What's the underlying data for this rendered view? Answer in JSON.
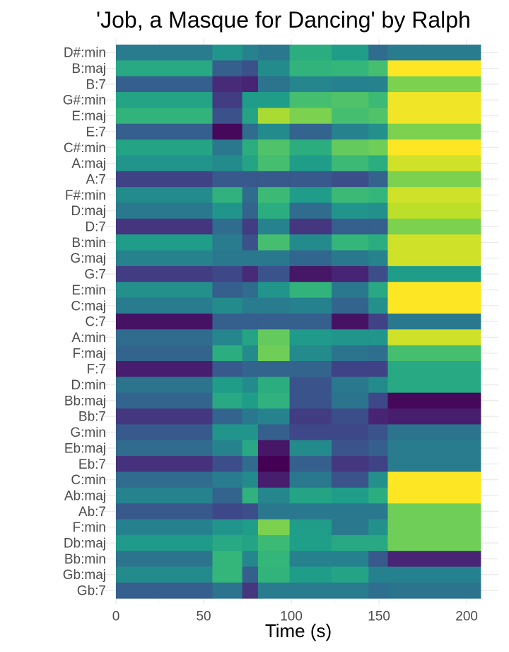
{
  "chart_data": {
    "type": "heatmap",
    "title": "'Job, a Masque for Dancing' by Ralph",
    "xlabel": "Time (s)",
    "ylabel": "",
    "xlim": [
      0,
      208
    ],
    "x_ticks": [
      0,
      50,
      100,
      150,
      200
    ],
    "colormap": "viridis",
    "value_range": [
      0,
      1
    ],
    "grid": true,
    "legend": "none",
    "time_bins": [
      0,
      55,
      72,
      81,
      99,
      123,
      144,
      155,
      208
    ],
    "chords": [
      "D#:min",
      "B:maj",
      "B:7",
      "G#:min",
      "E:maj",
      "E:7",
      "C#:min",
      "A:maj",
      "A:7",
      "F#:min",
      "D:maj",
      "D:7",
      "B:min",
      "G:maj",
      "G:7",
      "E:min",
      "C:maj",
      "C:7",
      "A:min",
      "F:maj",
      "F:7",
      "D:min",
      "Bb:maj",
      "Bb:7",
      "G:min",
      "Eb:maj",
      "Eb:7",
      "C:min",
      "Ab:maj",
      "Ab:7",
      "F:min",
      "Db:maj",
      "Bb:min",
      "Gb:maj",
      "Gb:7"
    ],
    "values": [
      [
        0.42,
        0.52,
        0.45,
        0.4,
        0.62,
        0.55,
        0.35,
        0.42
      ],
      [
        0.6,
        0.3,
        0.25,
        0.48,
        0.65,
        0.66,
        0.7,
        1.0
      ],
      [
        0.3,
        0.12,
        0.1,
        0.38,
        0.46,
        0.44,
        0.45,
        0.8
      ],
      [
        0.58,
        0.18,
        0.55,
        0.55,
        0.7,
        0.72,
        0.68,
        0.98
      ],
      [
        0.65,
        0.25,
        0.58,
        0.87,
        0.8,
        0.7,
        0.72,
        0.98
      ],
      [
        0.3,
        0.02,
        0.35,
        0.48,
        0.32,
        0.45,
        0.5,
        0.8
      ],
      [
        0.58,
        0.4,
        0.62,
        0.72,
        0.62,
        0.76,
        0.78,
        1.0
      ],
      [
        0.52,
        0.48,
        0.58,
        0.7,
        0.55,
        0.68,
        0.62,
        0.93
      ],
      [
        0.2,
        0.28,
        0.28,
        0.28,
        0.28,
        0.24,
        0.32,
        0.8
      ],
      [
        0.48,
        0.64,
        0.35,
        0.68,
        0.55,
        0.68,
        0.66,
        0.93
      ],
      [
        0.4,
        0.52,
        0.32,
        0.62,
        0.35,
        0.52,
        0.5,
        0.9
      ],
      [
        0.15,
        0.35,
        0.18,
        0.45,
        0.16,
        0.3,
        0.3,
        0.8
      ],
      [
        0.55,
        0.42,
        0.25,
        0.7,
        0.48,
        0.66,
        0.62,
        0.93
      ],
      [
        0.45,
        0.4,
        0.4,
        0.4,
        0.33,
        0.4,
        0.45,
        0.93
      ],
      [
        0.18,
        0.22,
        0.12,
        0.26,
        0.06,
        0.1,
        0.24,
        0.55
      ],
      [
        0.5,
        0.3,
        0.35,
        0.52,
        0.65,
        0.4,
        0.6,
        1.0
      ],
      [
        0.42,
        0.48,
        0.42,
        0.42,
        0.44,
        0.32,
        0.5,
        1.0
      ],
      [
        0.05,
        0.3,
        0.3,
        0.3,
        0.3,
        0.05,
        0.2,
        0.4
      ],
      [
        0.35,
        0.46,
        0.58,
        0.76,
        0.54,
        0.52,
        0.52,
        0.93
      ],
      [
        0.32,
        0.62,
        0.48,
        0.78,
        0.48,
        0.38,
        0.36,
        0.7
      ],
      [
        0.08,
        0.28,
        0.32,
        0.32,
        0.32,
        0.2,
        0.2,
        0.6
      ],
      [
        0.38,
        0.55,
        0.48,
        0.62,
        0.26,
        0.4,
        0.48,
        0.6
      ],
      [
        0.32,
        0.6,
        0.55,
        0.64,
        0.26,
        0.38,
        0.22,
        0.02
      ],
      [
        0.16,
        0.32,
        0.4,
        0.45,
        0.18,
        0.24,
        0.1,
        0.08
      ],
      [
        0.28,
        0.52,
        0.52,
        0.3,
        0.22,
        0.22,
        0.26,
        0.38
      ],
      [
        0.35,
        0.45,
        0.6,
        0.06,
        0.48,
        0.26,
        0.3,
        0.42
      ],
      [
        0.14,
        0.24,
        0.35,
        0.0,
        0.3,
        0.16,
        0.2,
        0.42
      ],
      [
        0.35,
        0.42,
        0.48,
        0.08,
        0.4,
        0.26,
        0.5,
        1.0
      ],
      [
        0.45,
        0.32,
        0.64,
        0.46,
        0.58,
        0.55,
        0.62,
        1.0
      ],
      [
        0.28,
        0.22,
        0.24,
        0.4,
        0.4,
        0.4,
        0.4,
        0.78
      ],
      [
        0.44,
        0.52,
        0.55,
        0.8,
        0.55,
        0.4,
        0.5,
        0.78
      ],
      [
        0.54,
        0.6,
        0.58,
        0.68,
        0.56,
        0.6,
        0.6,
        0.78
      ],
      [
        0.38,
        0.66,
        0.46,
        0.66,
        0.44,
        0.44,
        0.28,
        0.1
      ],
      [
        0.48,
        0.66,
        0.3,
        0.65,
        0.55,
        0.58,
        0.44,
        0.44
      ],
      [
        0.3,
        0.38,
        0.16,
        0.42,
        0.42,
        0.42,
        0.36,
        0.38
      ]
    ]
  }
}
